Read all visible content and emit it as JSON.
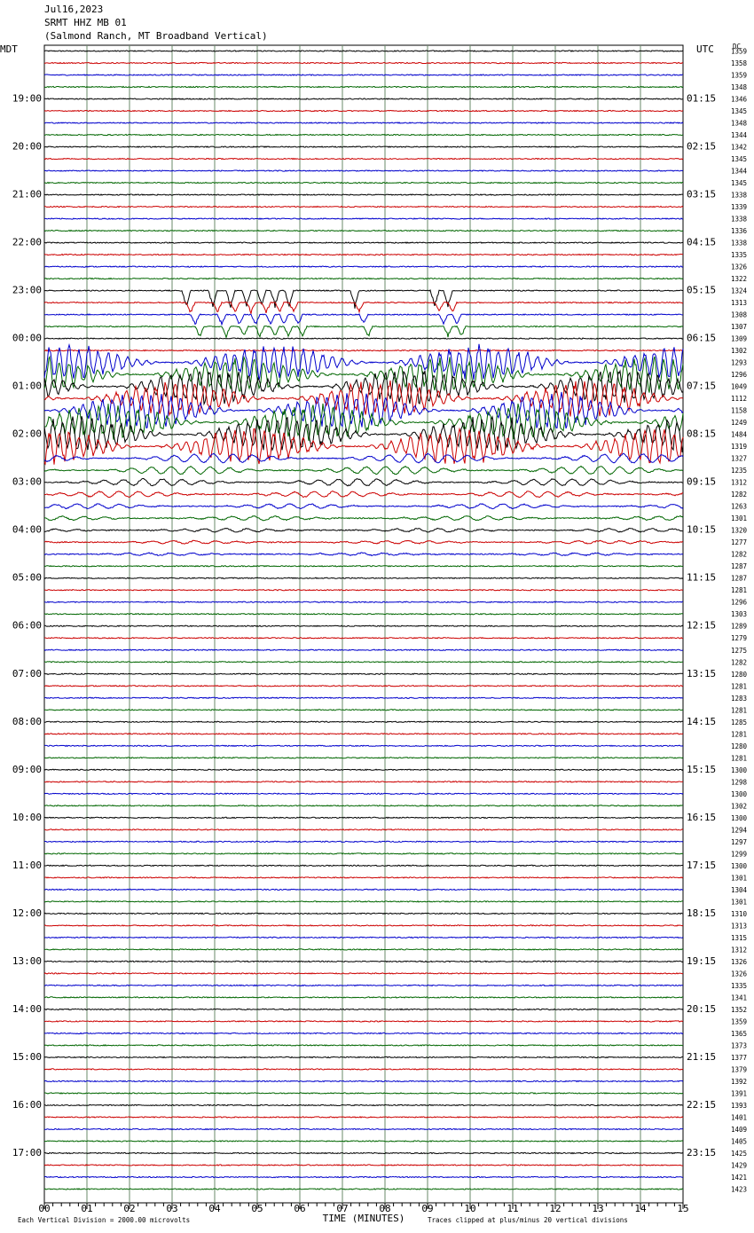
{
  "header": {
    "date": "Jul16,2023",
    "station": "SRMT HHZ MB 01",
    "location": "(Salmond Ranch, MT Broadband Vertical)"
  },
  "left_axis": {
    "title": "MDT",
    "labels": [
      "19:00",
      "20:00",
      "21:00",
      "22:00",
      "23:00",
      "00:00",
      "01:00",
      "02:00",
      "03:00",
      "04:00",
      "05:00",
      "06:00",
      "07:00",
      "08:00",
      "09:00",
      "10:00",
      "11:00",
      "12:00",
      "13:00",
      "14:00",
      "15:00",
      "16:00",
      "17:00"
    ]
  },
  "right_axis": {
    "title": "UTC",
    "labels": [
      "01:15",
      "02:15",
      "03:15",
      "04:15",
      "05:15",
      "06:15",
      "07:15",
      "08:15",
      "09:15",
      "10:15",
      "11:15",
      "12:15",
      "13:15",
      "14:15",
      "15:15",
      "16:15",
      "17:15",
      "18:15",
      "19:15",
      "20:15",
      "21:15",
      "22:15",
      "23:15"
    ]
  },
  "dc": {
    "title": "DC",
    "values": [
      1359,
      1358,
      1359,
      1348,
      1346,
      1345,
      1348,
      1344,
      1342,
      1345,
      1344,
      1345,
      1338,
      1339,
      1338,
      1336,
      1338,
      1335,
      1326,
      1322,
      1324,
      1313,
      1308,
      1307,
      1309,
      1302,
      1293,
      1296,
      1049,
      1112,
      1158,
      1249,
      1484,
      1319,
      1327,
      1235,
      1312,
      1282,
      1263,
      1301,
      1320,
      1277,
      1282,
      1287,
      1287,
      1281,
      1296,
      1303,
      1289,
      1279,
      1275,
      1282,
      1280,
      1281,
      1283,
      1281,
      1285,
      1281,
      1280,
      1281,
      1300,
      1298,
      1300,
      1302,
      1300,
      1294,
      1297,
      1299,
      1300,
      1301,
      1304,
      1301,
      1310,
      1313,
      1315,
      1312,
      1326,
      1326,
      1335,
      1341,
      1352,
      1359,
      1365,
      1373,
      1377,
      1379,
      1392,
      1391,
      1393,
      1401,
      1409,
      1405,
      1425,
      1429,
      1421,
      1423
    ]
  },
  "x_axis": {
    "title": "TIME (MINUTES)",
    "ticks": [
      "00",
      "01",
      "02",
      "03",
      "04",
      "05",
      "06",
      "07",
      "08",
      "09",
      "10",
      "11",
      "12",
      "13",
      "14",
      "15"
    ]
  },
  "footer": {
    "scale": "Each Vertical Division = 2000.00 microvolts",
    "clip": "Traces clipped at plus/minus 20 vertical divisions"
  },
  "trace_colors": [
    "#000000",
    "#cc0000",
    "#0000cc",
    "#006600"
  ]
}
